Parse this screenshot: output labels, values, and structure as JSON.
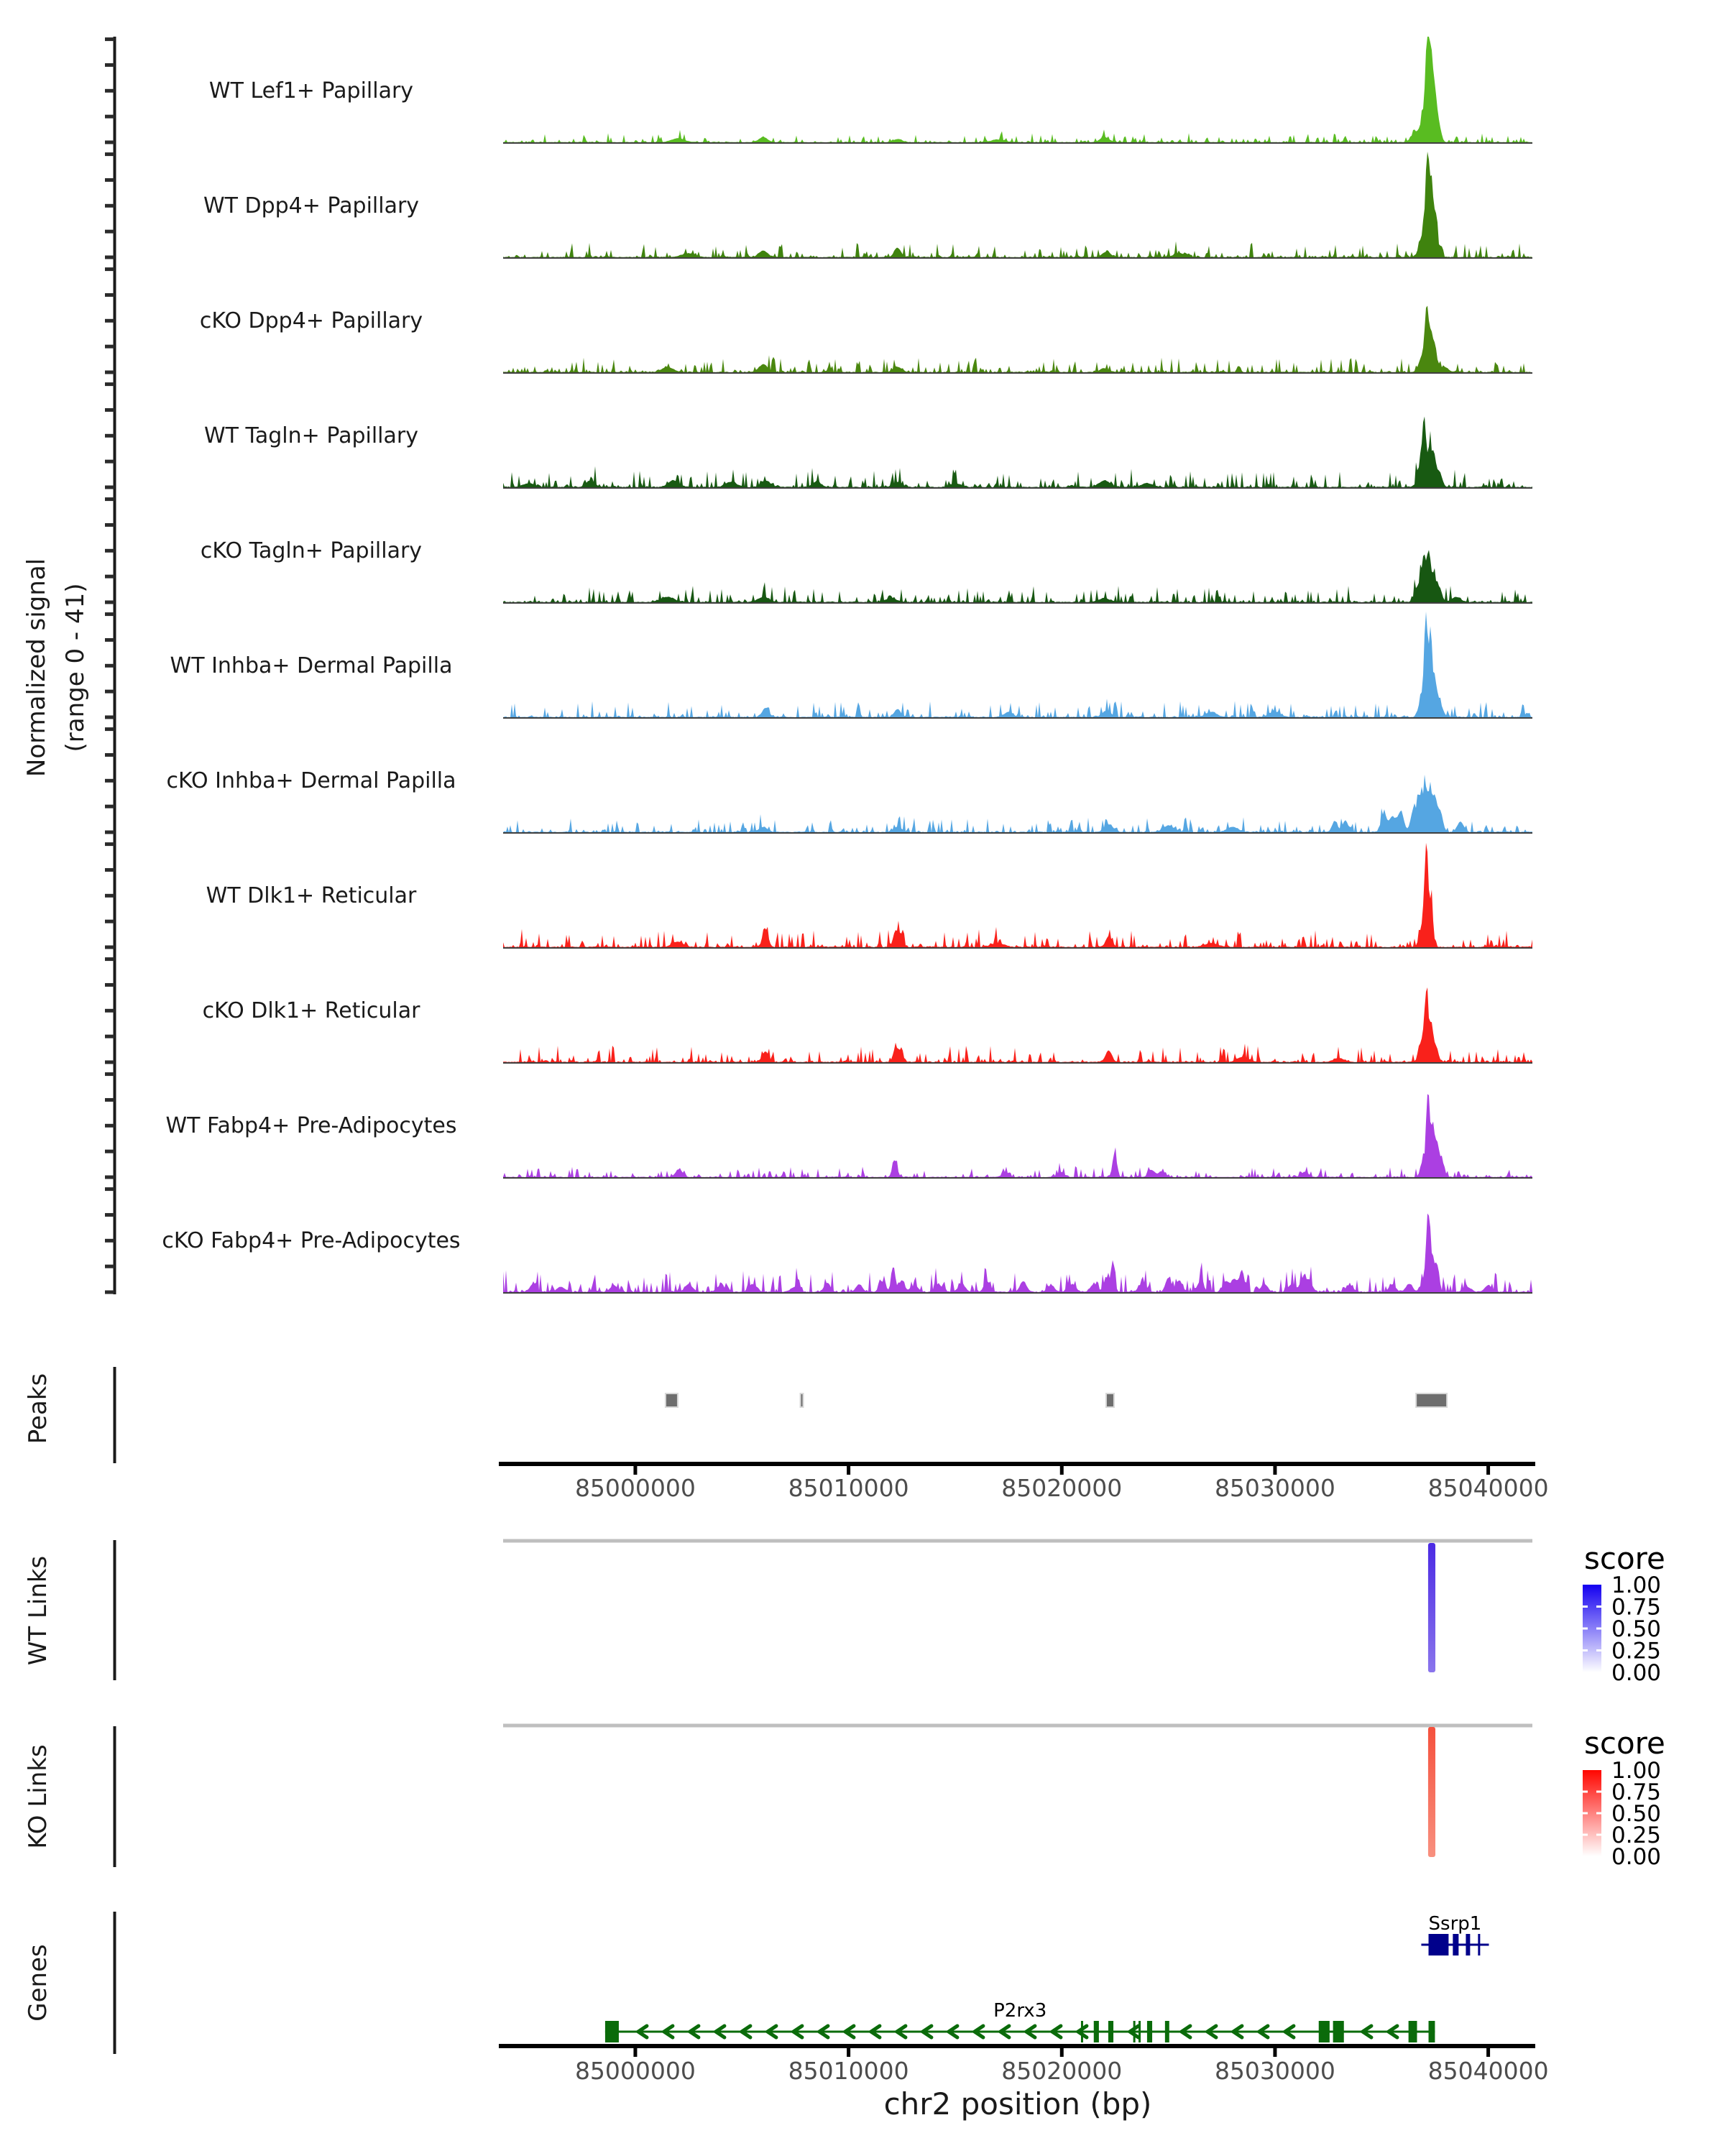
{
  "figure": {
    "background": "#FFFFFF"
  },
  "y_axis": {
    "label_line1": "Normalized signal",
    "label_line2": "(range 0 - 41)",
    "range_min": 0,
    "range_max": 41,
    "tick_values": [
      0,
      10,
      20,
      30,
      40
    ]
  },
  "facets": {
    "peaks_label": "Peaks",
    "wt_links_label": "WT Links",
    "ko_links_label": "KO Links",
    "genes_label": "Genes"
  },
  "chart_data": {
    "type": "area",
    "region": {
      "chrom": "chr2",
      "start": 84993800,
      "end": 85042070
    },
    "xlabel": "chr2 position (bp)",
    "axis_ticks": [
      85000000,
      85010000,
      85020000,
      85030000,
      85040000
    ],
    "axis_tick_labels": [
      "85000000",
      "85010000",
      "85020000",
      "85030000",
      "85040000"
    ],
    "ylim": [
      0,
      41
    ],
    "tracks": [
      {
        "name": "WT Lef1+ Papillary",
        "color": "#59BC21",
        "seed": 11,
        "noise": 0.5,
        "bumps": [
          [
            85037150,
            40,
            90
          ],
          [
            85037320,
            26,
            80
          ],
          [
            85037480,
            17,
            90
          ],
          [
            85036950,
            9,
            120
          ],
          [
            85037650,
            8,
            120
          ],
          [
            85036600,
            4,
            200
          ],
          [
            85002000,
            1.5,
            300
          ],
          [
            85006000,
            2,
            200
          ],
          [
            85012300,
            1.2,
            200
          ],
          [
            85022000,
            2,
            200
          ],
          [
            85017000,
            1,
            300
          ]
        ]
      },
      {
        "name": "WT Dpp4+ Papillary",
        "color": "#3F830E",
        "seed": 22,
        "noise": 0.8,
        "bumps": [
          [
            85037150,
            40,
            90
          ],
          [
            85037350,
            25,
            80
          ],
          [
            85037550,
            16,
            90
          ],
          [
            85036900,
            8,
            150
          ],
          [
            85006000,
            2.5,
            200
          ],
          [
            85012300,
            3.5,
            150
          ],
          [
            85022100,
            2,
            200
          ],
          [
            85002500,
            1.5,
            300
          ],
          [
            85025500,
            1.5,
            250
          ]
        ]
      },
      {
        "name": "cKO Dpp4+ Papillary",
        "color": "#4A870F",
        "seed": 33,
        "noise": 0.8,
        "bumps": [
          [
            85037120,
            24,
            90
          ],
          [
            85037320,
            13,
            80
          ],
          [
            85037500,
            10,
            90
          ],
          [
            85036900,
            6,
            150
          ],
          [
            85037900,
            2,
            200
          ],
          [
            85006000,
            3,
            200
          ],
          [
            85012300,
            2,
            200
          ],
          [
            85001500,
            2,
            250
          ],
          [
            85022000,
            1.5,
            200
          ]
        ]
      },
      {
        "name": "WT Tagln+ Papillary",
        "color": "#185A12",
        "seed": 44,
        "noise": 1.0,
        "bumps": [
          [
            85037000,
            25,
            90
          ],
          [
            85037250,
            15,
            80
          ],
          [
            85037450,
            12,
            90
          ],
          [
            85036800,
            8,
            130
          ],
          [
            85037700,
            6,
            130
          ],
          [
            84995000,
            1.5,
            250
          ],
          [
            84997900,
            2.5,
            200
          ],
          [
            85001800,
            2.5,
            250
          ],
          [
            85004500,
            2,
            250
          ],
          [
            85006100,
            2.5,
            200
          ],
          [
            85008500,
            2,
            200
          ],
          [
            85012300,
            2,
            200
          ],
          [
            85015000,
            1.5,
            250
          ],
          [
            85022000,
            2.5,
            250
          ],
          [
            85024000,
            1.5,
            250
          ]
        ]
      },
      {
        "name": "cKO Tagln+ Papillary",
        "color": "#175712",
        "seed": 55,
        "noise": 0.9,
        "bumps": [
          [
            85036980,
            17,
            100
          ],
          [
            85037220,
            18,
            90
          ],
          [
            85037450,
            10,
            90
          ],
          [
            85037700,
            6,
            120
          ],
          [
            85036700,
            6,
            150
          ],
          [
            85001500,
            2,
            300
          ],
          [
            85006000,
            2,
            250
          ],
          [
            85012000,
            1.5,
            250
          ],
          [
            85022000,
            1.5,
            250
          ],
          [
            85038500,
            2,
            200
          ]
        ]
      },
      {
        "name": "WT Inhba+ Dermal Papilla",
        "color": "#55A6E2",
        "seed": 66,
        "noise": 0.9,
        "bumps": [
          [
            85037080,
            38,
            80
          ],
          [
            85037300,
            33,
            80
          ],
          [
            85037520,
            12,
            90
          ],
          [
            85036880,
            8,
            130
          ],
          [
            85037750,
            5,
            130
          ],
          [
            85006100,
            3.5,
            150
          ],
          [
            85012300,
            3,
            150
          ],
          [
            85017500,
            2,
            200
          ],
          [
            85022100,
            2.5,
            200
          ],
          [
            85027000,
            2,
            250
          ],
          [
            85030000,
            2,
            250
          ]
        ]
      },
      {
        "name": "cKO Inhba+ Dermal Papilla",
        "color": "#55A6E2",
        "seed": 77,
        "noise": 0.8,
        "bumps": [
          [
            85036500,
            9,
            130
          ],
          [
            85036800,
            13,
            110
          ],
          [
            85037050,
            16,
            100
          ],
          [
            85037280,
            14,
            100
          ],
          [
            85037500,
            12,
            100
          ],
          [
            85037750,
            8,
            120
          ],
          [
            85035900,
            8,
            140
          ],
          [
            85035500,
            6,
            140
          ],
          [
            85035100,
            7,
            130
          ],
          [
            85032800,
            4,
            130
          ],
          [
            85033300,
            4.5,
            130
          ],
          [
            85038700,
            4,
            150
          ],
          [
            85006000,
            2,
            200
          ],
          [
            85012300,
            2,
            200
          ],
          [
            85022200,
            3,
            200
          ],
          [
            85025000,
            2.5,
            250
          ],
          [
            85028000,
            2,
            250
          ]
        ]
      },
      {
        "name": "WT Dlk1+ Reticular",
        "color": "#F9211B",
        "seed": 88,
        "noise": 1.0,
        "bumps": [
          [
            85037100,
            38,
            85
          ],
          [
            85037330,
            17,
            85
          ],
          [
            85036900,
            8,
            130
          ],
          [
            85006100,
            7,
            130
          ],
          [
            85012200,
            6,
            110
          ],
          [
            85012450,
            5,
            110
          ],
          [
            85022200,
            4,
            140
          ],
          [
            85002000,
            2,
            250
          ],
          [
            85017000,
            1.5,
            300
          ],
          [
            85027000,
            1.5,
            300
          ]
        ]
      },
      {
        "name": "cKO Dlk1+ Reticular",
        "color": "#F9211B",
        "seed": 99,
        "noise": 0.9,
        "bumps": [
          [
            85037100,
            25,
            90
          ],
          [
            85037330,
            14,
            85
          ],
          [
            85036880,
            8,
            130
          ],
          [
            85037550,
            6,
            110
          ],
          [
            85006100,
            4,
            150
          ],
          [
            85012200,
            5.5,
            110
          ],
          [
            85012450,
            4,
            110
          ],
          [
            85022200,
            4.5,
            140
          ],
          [
            85028500,
            2,
            250
          ],
          [
            85033000,
            1.5,
            250
          ]
        ]
      },
      {
        "name": "WT Fabp4+ Pre-Adipocytes",
        "color": "#AB3FE2",
        "seed": 1010,
        "noise": 0.6,
        "bumps": [
          [
            85037180,
            33,
            80
          ],
          [
            85037400,
            20,
            80
          ],
          [
            85037600,
            12,
            90
          ],
          [
            85036950,
            6,
            120
          ],
          [
            85037820,
            6,
            120
          ],
          [
            85002050,
            3,
            160
          ],
          [
            85012170,
            6.5,
            110
          ],
          [
            85022480,
            9,
            100
          ],
          [
            85017360,
            2,
            150
          ],
          [
            85019950,
            2,
            150
          ],
          [
            85024230,
            2.5,
            150
          ],
          [
            85024700,
            2,
            150
          ],
          [
            85031400,
            2,
            160
          ]
        ]
      },
      {
        "name": "cKO Fabp4+ Pre-Adipocytes",
        "color": "#AB3FE2",
        "seed": 111,
        "noise": 1.2,
        "bumps": [
          [
            85037180,
            30,
            85
          ],
          [
            85037400,
            13,
            85
          ],
          [
            85037620,
            10,
            90
          ],
          [
            85036980,
            5,
            130
          ],
          [
            84995200,
            3,
            150
          ],
          [
            84996500,
            2,
            180
          ],
          [
            84999000,
            2.5,
            180
          ],
          [
            85002500,
            3,
            180
          ],
          [
            85004000,
            2.5,
            180
          ],
          [
            85005500,
            3,
            160
          ],
          [
            85007500,
            2,
            180
          ],
          [
            85009000,
            3.5,
            150
          ],
          [
            85010500,
            3,
            150
          ],
          [
            85011600,
            4,
            140
          ],
          [
            85012100,
            10,
            90
          ],
          [
            85012500,
            4.5,
            130
          ],
          [
            85013100,
            2.5,
            160
          ],
          [
            85014200,
            3,
            160
          ],
          [
            85015300,
            3.5,
            150
          ],
          [
            85016500,
            4,
            150
          ],
          [
            85018200,
            4,
            150
          ],
          [
            85019500,
            2.5,
            160
          ],
          [
            85020500,
            3,
            160
          ],
          [
            85021500,
            3,
            150
          ],
          [
            85022100,
            5.5,
            130
          ],
          [
            85022400,
            12,
            85
          ],
          [
            85023800,
            4,
            150
          ],
          [
            85025000,
            5.5,
            130
          ],
          [
            85025500,
            4.5,
            140
          ],
          [
            85026500,
            4,
            150
          ],
          [
            85027700,
            4,
            150
          ],
          [
            85028100,
            5,
            140
          ],
          [
            85028450,
            8.5,
            110
          ],
          [
            85029500,
            3,
            160
          ],
          [
            85030800,
            3,
            160
          ],
          [
            85031300,
            5,
            130
          ],
          [
            85031600,
            4.5,
            140
          ],
          [
            85033500,
            2.5,
            160
          ],
          [
            85035500,
            3,
            150
          ],
          [
            85036300,
            3,
            150
          ],
          [
            85039000,
            2,
            180
          ],
          [
            85040000,
            2.5,
            160
          ]
        ]
      }
    ],
    "peaks": {
      "color": "#6E6E6E",
      "border_color": "#D8D8D8",
      "regions": [
        {
          "start": 85001416,
          "end": 85001989
        },
        {
          "start": 85007738,
          "end": 85007873
        },
        {
          "start": 85022080,
          "end": 85022450
        },
        {
          "start": 85036614,
          "end": 85038063
        }
      ]
    },
    "links": [
      {
        "label": "WT Links",
        "bar": {
          "start": 85037180,
          "end": 85037520,
          "score": 0.85
        },
        "bar_color_top": "#4B2AE4",
        "bar_color_bottom": "#8A75EC",
        "legend": {
          "title": "score",
          "tick_labels": [
            "1.00",
            "0.75",
            "0.50",
            "0.25",
            "0.00"
          ],
          "gradient_top": "#1400F0",
          "gradient_bottom": "#FFFFFF"
        }
      },
      {
        "label": "KO Links",
        "bar": {
          "start": 85037180,
          "end": 85037520,
          "score": 0.72
        },
        "bar_color_top": "#F5513D",
        "bar_color_bottom": "#F8907F",
        "legend": {
          "title": "score",
          "tick_labels": [
            "1.00",
            "0.75",
            "0.50",
            "0.25",
            "0.00"
          ],
          "gradient_top": "#FF0600",
          "gradient_bottom": "#FFFFFF"
        }
      }
    ],
    "genes": {
      "items": [
        {
          "name": "Ssrp1",
          "strand": "+",
          "color": "#00008B",
          "start": 85036860,
          "end": 85040030,
          "exons": [
            [
              85037200,
              85038140
            ],
            [
              85038340,
              85038610
            ],
            [
              85038950,
              85039150
            ]
          ],
          "thin_marks": [
            85039520
          ]
        },
        {
          "name": "P2rx3",
          "strand": "-",
          "color": "#0A6B0A",
          "start": 84998584,
          "end": 85037500,
          "exons": [
            [
              84998584,
              84999225
            ],
            [
              85021500,
              85021740
            ],
            [
              85022180,
              85022420
            ],
            [
              85024000,
              85024240
            ],
            [
              85024840,
              85025040
            ],
            [
              85032050,
              85032560
            ],
            [
              85032720,
              85033230
            ],
            [
              85036260,
              85036660
            ],
            [
              85037200,
              85037500
            ]
          ],
          "thin_marks": [
            85023350,
            85023600,
            85020900
          ]
        }
      ]
    }
  }
}
